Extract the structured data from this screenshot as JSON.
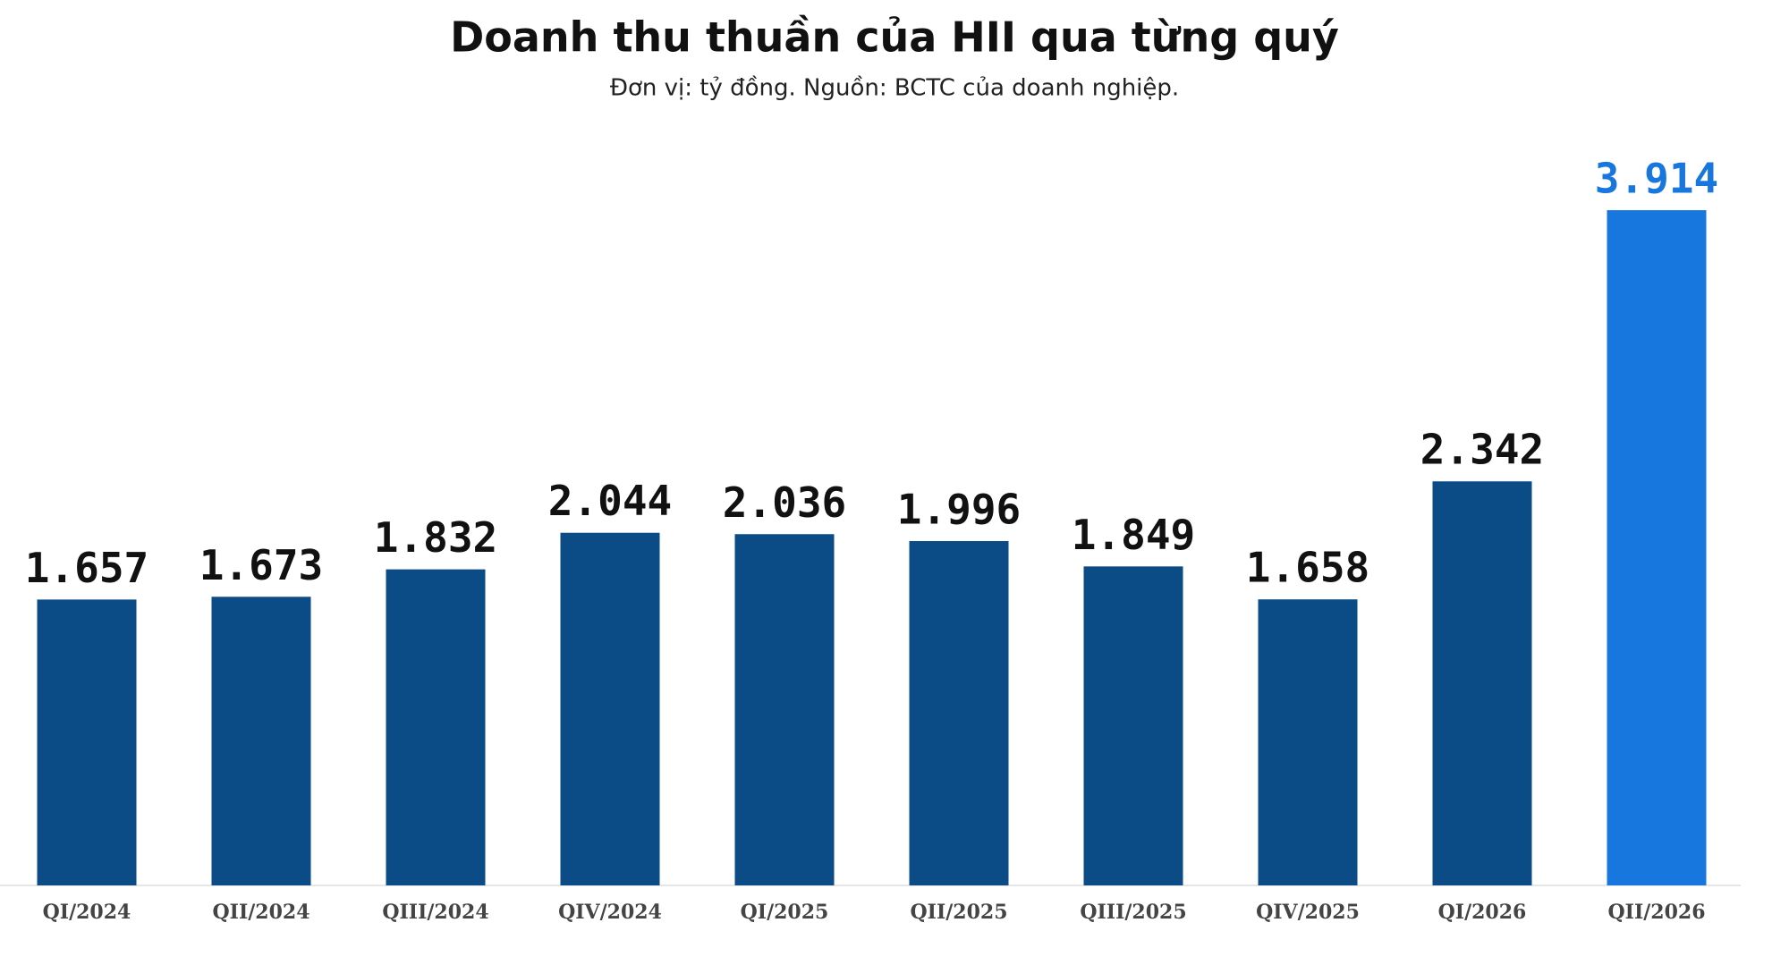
{
  "chart_data": {
    "type": "bar",
    "title": "Doanh thu thuần của HII qua từng quý",
    "subtitle": "Đơn vị: tỷ đồng. Nguồn: BCTC của doanh nghiệp.",
    "categories": [
      "QI/2024",
      "QII/2024",
      "QIII/2024",
      "QIV/2024",
      "QI/2025",
      "QII/2025",
      "QIII/2025",
      "QIV/2025",
      "QI/2026",
      "QII/2026"
    ],
    "values": [
      1657,
      1673,
      1832,
      2044,
      2036,
      1996,
      1849,
      1658,
      2342,
      3914
    ],
    "value_labels": [
      "1.657",
      "1.673",
      "1.832",
      "2.044",
      "2.036",
      "1.996",
      "1.849",
      "1.658",
      "2.342",
      "3.914"
    ],
    "colors": [
      "#0b4c87",
      "#0b4c87",
      "#0b4c87",
      "#0b4c87",
      "#0b4c87",
      "#0b4c87",
      "#0b4c87",
      "#0b4c87",
      "#0b4c87",
      "#1877de"
    ]
  }
}
